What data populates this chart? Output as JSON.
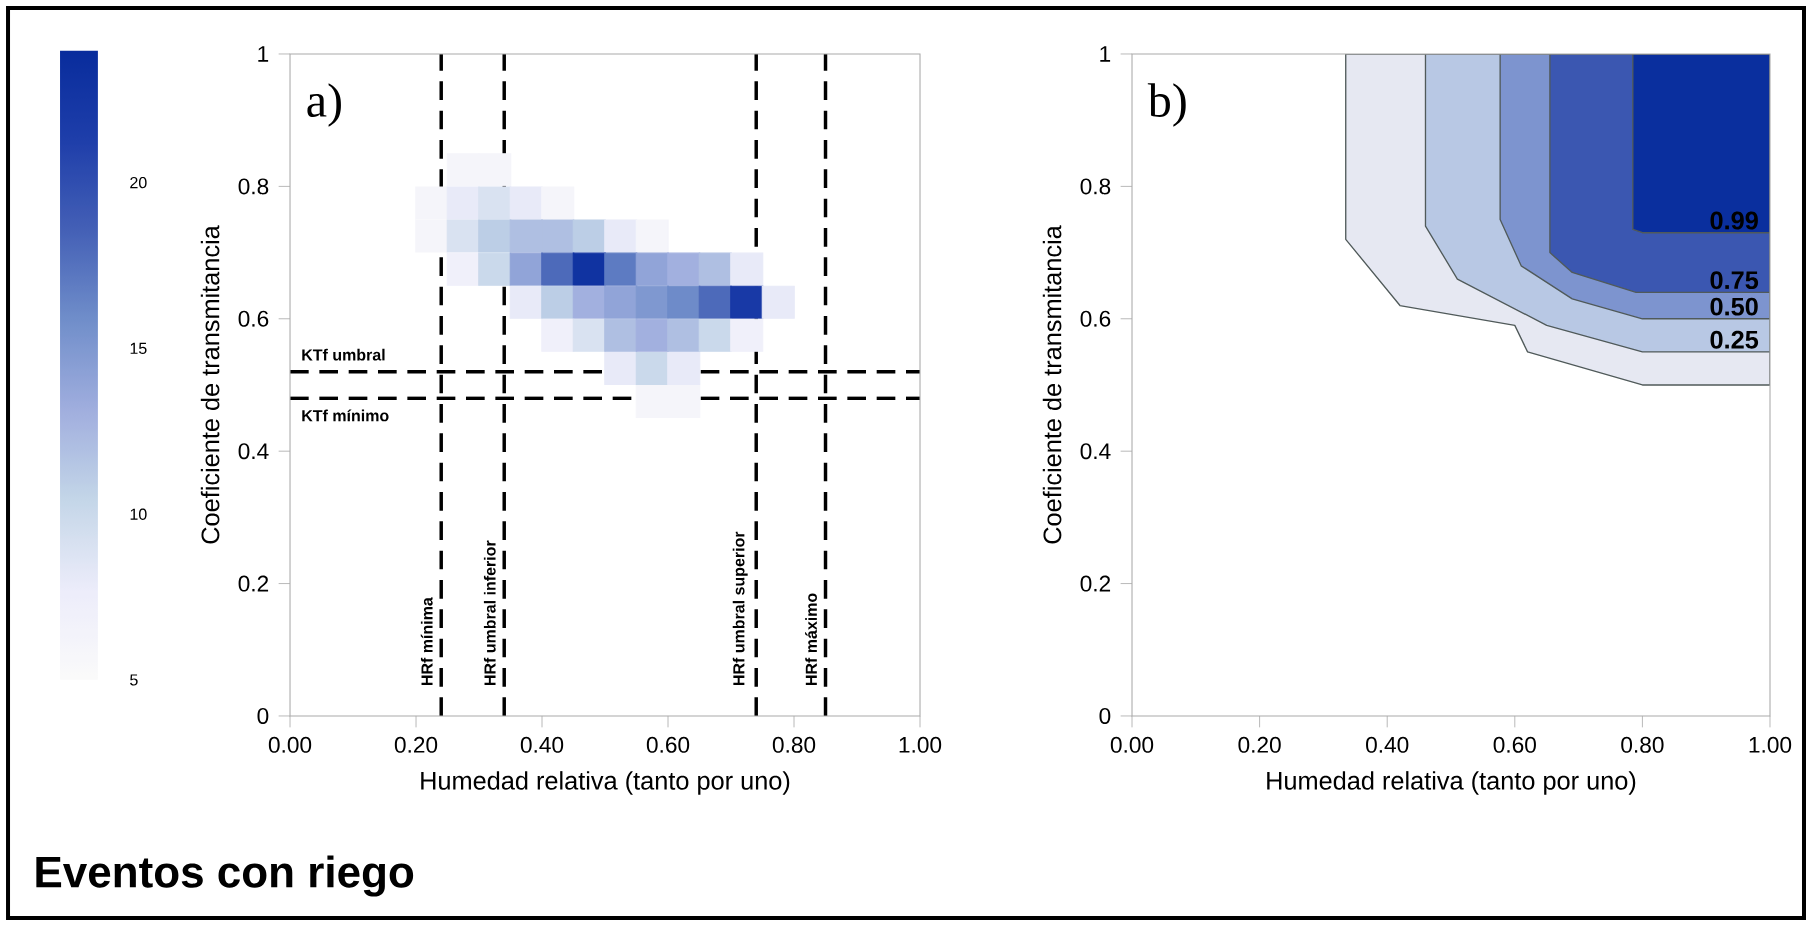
{
  "chart_data": [
    {
      "type": "scatter",
      "title": "a)",
      "xlabel": "Humedad relativa (tanto por uno)",
      "ylabel": "Coeficiente de transmitancia",
      "annotations": [
        "Eventos con riego"
      ],
      "marker": "square",
      "xlim": [
        0,
        1
      ],
      "ylim": [
        0,
        1
      ],
      "xticks": [
        {
          "value": 0,
          "label": "0.00"
        },
        {
          "value": 0.2,
          "label": "0.20"
        },
        {
          "value": 0.4,
          "label": "0.40"
        },
        {
          "value": 0.6,
          "label": "0.60"
        },
        {
          "value": 0.8,
          "label": "0.80"
        },
        {
          "value": 1,
          "label": "1.00"
        }
      ],
      "yticks": [
        0,
        0.2,
        0.4,
        0.6,
        0.8,
        1
      ],
      "clim": [
        5,
        24
      ],
      "cticks": [
        5,
        10,
        15,
        20
      ],
      "x": [
        0.275,
        0.325,
        0.225,
        0.275,
        0.325,
        0.375,
        0.425,
        0.225,
        0.275,
        0.325,
        0.375,
        0.425,
        0.475,
        0.525,
        0.575,
        0.275,
        0.325,
        0.375,
        0.425,
        0.475,
        0.525,
        0.575,
        0.625,
        0.675,
        0.725,
        0.375,
        0.425,
        0.475,
        0.525,
        0.575,
        0.625,
        0.675,
        0.725,
        0.775,
        0.425,
        0.475,
        0.525,
        0.575,
        0.625,
        0.675,
        0.725,
        0.525,
        0.575,
        0.625,
        0.575,
        0.625
      ],
      "values": [
        0.825,
        0.825,
        0.775,
        0.775,
        0.775,
        0.775,
        0.775,
        0.725,
        0.725,
        0.725,
        0.725,
        0.725,
        0.725,
        0.725,
        0.725,
        0.675,
        0.675,
        0.675,
        0.675,
        0.675,
        0.675,
        0.675,
        0.675,
        0.675,
        0.675,
        0.625,
        0.625,
        0.625,
        0.625,
        0.625,
        0.625,
        0.625,
        0.625,
        0.625,
        0.575,
        0.575,
        0.575,
        0.575,
        0.575,
        0.575,
        0.575,
        0.525,
        0.525,
        0.525,
        0.475,
        0.475
      ],
      "cvalues": [
        6,
        6,
        6,
        8,
        9,
        8,
        6,
        6,
        9,
        11,
        12,
        12,
        11,
        8,
        6,
        7,
        10,
        14,
        18,
        23,
        17,
        14,
        13,
        12,
        8,
        8,
        11,
        13,
        14,
        15,
        16,
        18,
        22,
        8,
        7,
        9,
        12,
        13,
        12,
        10,
        7,
        8,
        10,
        8,
        6,
        6
      ],
      "ref_lines": [
        {
          "axis": "y",
          "value": 0.52,
          "label": "KTf umbral",
          "line_style": "dashed"
        },
        {
          "axis": "y",
          "value": 0.48,
          "label": "KTf mínimo",
          "line_style": "dashed"
        },
        {
          "axis": "x",
          "value": 0.24,
          "label": "HRf mínima",
          "line_style": "dashed"
        },
        {
          "axis": "x",
          "value": 0.34,
          "label": "HRf umbral inferior",
          "line_style": "dashed"
        },
        {
          "axis": "x",
          "value": 0.74,
          "label": "HRf umbral superior",
          "line_style": "dashed"
        },
        {
          "axis": "x",
          "value": 0.85,
          "label": "HRf máximo",
          "line_style": "dashed"
        }
      ]
    },
    {
      "type": "area",
      "title": "b)",
      "xlabel": "Humedad relativa (tanto por uno)",
      "ylabel": "Coeficiente de transmitancia",
      "xlim": [
        0,
        1
      ],
      "ylim": [
        0,
        1
      ],
      "xticks": [
        {
          "value": 0,
          "label": "0.00"
        },
        {
          "value": 0.2,
          "label": "0.20"
        },
        {
          "value": 0.4,
          "label": "0.40"
        },
        {
          "value": 0.6,
          "label": "0.60"
        },
        {
          "value": 0.8,
          "label": "0.80"
        },
        {
          "value": 1,
          "label": "1.00"
        }
      ],
      "yticks": [
        0,
        0.2,
        0.4,
        0.6,
        0.8,
        1
      ],
      "series": [
        {
          "color": "#e6e8f2",
          "x": [
            0.335,
            0.335,
            0.42,
            0.6,
            0.62,
            0.8,
            1,
            1
          ],
          "values": [
            1,
            0.72,
            0.62,
            0.59,
            0.55,
            0.5,
            0.5,
            1
          ]
        },
        {
          "name": "0.25",
          "color": "#b8c8e4",
          "x": [
            0.46,
            0.46,
            0.51,
            0.65,
            0.8,
            1,
            1
          ],
          "values": [
            1,
            0.74,
            0.66,
            0.59,
            0.55,
            0.55,
            1
          ]
        },
        {
          "name": "0.50",
          "color": "#7d94cf",
          "x": [
            0.577,
            0.577,
            0.61,
            0.69,
            0.8,
            1,
            1
          ],
          "values": [
            1,
            0.75,
            0.68,
            0.63,
            0.6,
            0.6,
            1
          ]
        },
        {
          "name": "0.75",
          "color": "#3b57b1",
          "x": [
            0.655,
            0.655,
            0.69,
            0.79,
            1,
            1
          ],
          "values": [
            1,
            0.7,
            0.67,
            0.64,
            0.64,
            1
          ]
        },
        {
          "name": "0.99",
          "color": "#0a2f9e",
          "x": [
            0.785,
            0.785,
            0.8,
            1,
            1
          ],
          "values": [
            1,
            0.735,
            0.73,
            0.73,
            1
          ]
        }
      ]
    }
  ]
}
